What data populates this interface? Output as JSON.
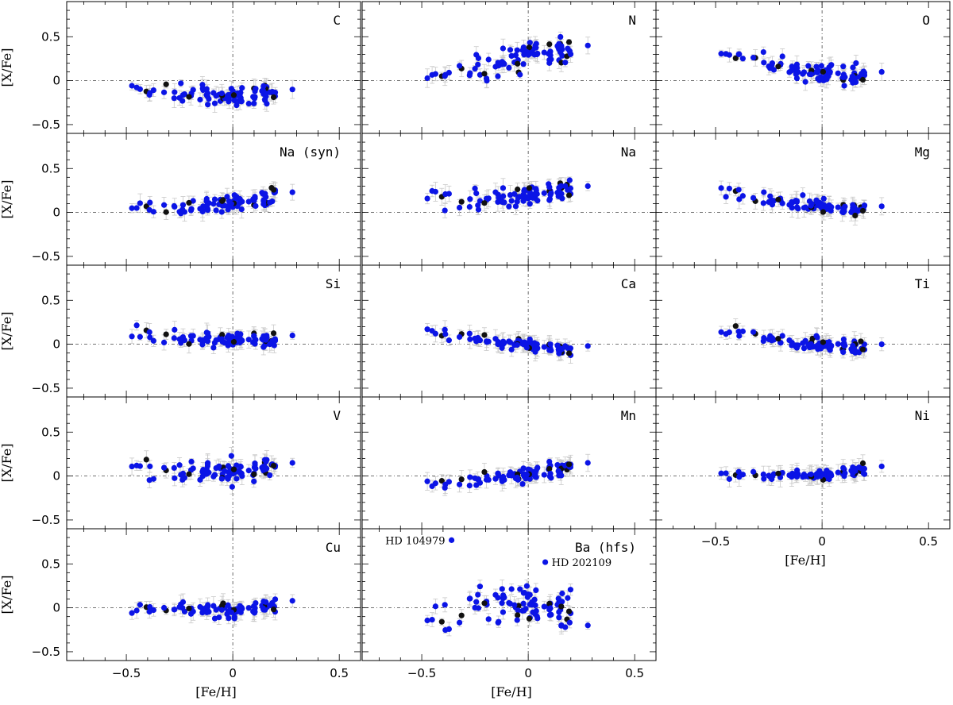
{
  "figure": {
    "xlabel": "[Fe/H]",
    "ylabel": "[X/Fe]"
  },
  "chart_data": {
    "type": "scatter",
    "xlim": [
      -0.78,
      0.6
    ],
    "ylim": [
      -0.6,
      0.9
    ],
    "x_ticks": [
      -0.5,
      0,
      0.5
    ],
    "x_tick_labels": [
      "−0.5",
      "0",
      "0.5"
    ],
    "y_ticks": [
      -0.5,
      0,
      0.5
    ],
    "y_tick_labels": [
      "−0.5",
      "0",
      "0.5"
    ],
    "reference_lines": {
      "x": 0,
      "y": 0
    },
    "colors": {
      "primary": "#0b14e6",
      "secondary": "#111111",
      "error_bar": "#c8c8c8"
    },
    "panels": [
      {
        "element": "C",
        "row": 0,
        "col": 0,
        "trend": [
          -0.1,
          -0.15,
          -0.18,
          -0.15
        ],
        "spread": 0.05
      },
      {
        "element": "N",
        "row": 0,
        "col": 1,
        "trend": [
          0.05,
          0.15,
          0.3,
          0.35
        ],
        "spread": 0.08
      },
      {
        "element": "O",
        "row": 0,
        "col": 2,
        "trend": [
          0.35,
          0.18,
          0.08,
          0.05
        ],
        "spread": 0.05
      },
      {
        "element": "Na (syn)",
        "row": 1,
        "col": 0,
        "trend": [
          0.08,
          0.03,
          0.1,
          0.18
        ],
        "spread": 0.05
      },
      {
        "element": "Na",
        "row": 1,
        "col": 1,
        "trend": [
          0.15,
          0.12,
          0.18,
          0.25
        ],
        "spread": 0.06
      },
      {
        "element": "Mg",
        "row": 1,
        "col": 2,
        "trend": [
          0.23,
          0.15,
          0.07,
          0.02
        ],
        "spread": 0.04
      },
      {
        "element": "Si",
        "row": 2,
        "col": 0,
        "trend": [
          0.15,
          0.07,
          0.04,
          0.05
        ],
        "spread": 0.04
      },
      {
        "element": "Ca",
        "row": 2,
        "col": 1,
        "trend": [
          0.18,
          0.05,
          0.0,
          -0.07
        ],
        "spread": 0.03
      },
      {
        "element": "Ti",
        "row": 2,
        "col": 2,
        "trend": [
          0.2,
          0.05,
          0.0,
          -0.05
        ],
        "spread": 0.04
      },
      {
        "element": "V",
        "row": 3,
        "col": 0,
        "trend": [
          0.1,
          0.05,
          0.05,
          0.1
        ],
        "spread": 0.07
      },
      {
        "element": "Mn",
        "row": 3,
        "col": 1,
        "trend": [
          -0.07,
          -0.04,
          0.02,
          0.1
        ],
        "spread": 0.04
      },
      {
        "element": "Ni",
        "row": 3,
        "col": 2,
        "trend": [
          0.02,
          0.0,
          0.02,
          0.06
        ],
        "spread": 0.03
      },
      {
        "element": "Cu",
        "row": 4,
        "col": 0,
        "trend": [
          -0.02,
          0.0,
          -0.03,
          0.03
        ],
        "spread": 0.04
      },
      {
        "element": "Ba (hfs)",
        "row": 4,
        "col": 1,
        "trend": [
          -0.15,
          0.03,
          0.05,
          0.0
        ],
        "spread": 0.1
      }
    ],
    "annotations": [
      {
        "panel": "Ba (hfs)",
        "label": "HD 104979",
        "x": -0.36,
        "y": 0.77
      },
      {
        "panel": "Ba (hfs)",
        "label": "HD 202109",
        "x": 0.08,
        "y": 0.52
      }
    ]
  }
}
